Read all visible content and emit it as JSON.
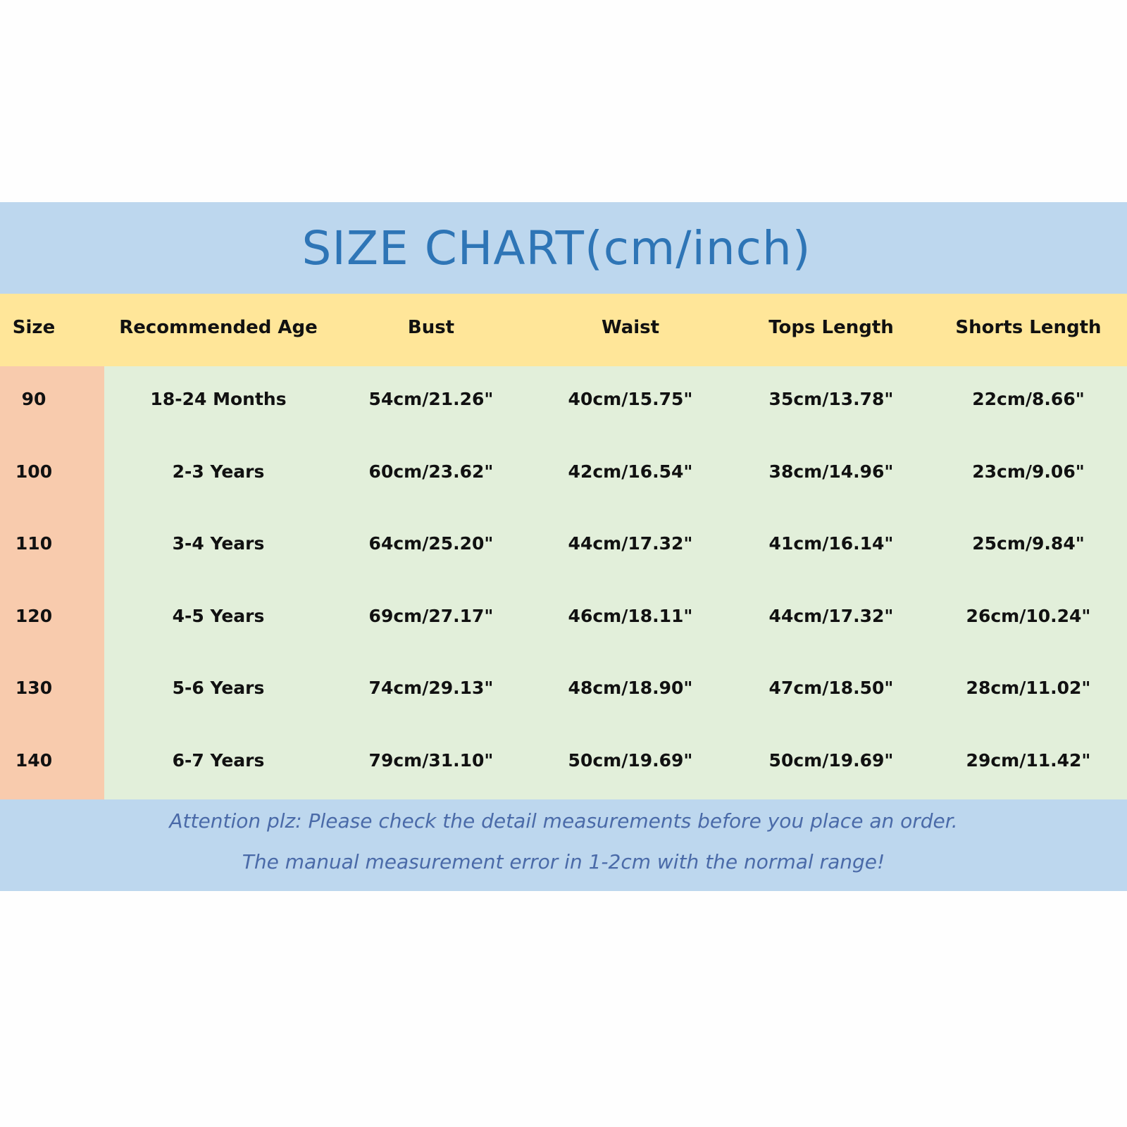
{
  "title": "SIZE CHART(cm/inch)",
  "colors": {
    "title_band": "#bdd7ee",
    "header_band": "#ffe699",
    "size_column": "#f8cbad",
    "body": "#e2efda",
    "title_text": "#2e75b6"
  },
  "columns": [
    "Size",
    "Recommended Age",
    "Bust",
    "Waist",
    "Tops Length",
    "Shorts Length"
  ],
  "rows": [
    [
      "90",
      "18-24 Months",
      "54cm/21.26\"",
      "40cm/15.75\"",
      "35cm/13.78\"",
      "22cm/8.66\""
    ],
    [
      "100",
      "2-3 Years",
      "60cm/23.62\"",
      "42cm/16.54\"",
      "38cm/14.96\"",
      "23cm/9.06\""
    ],
    [
      "110",
      "3-4 Years",
      "64cm/25.20\"",
      "44cm/17.32\"",
      "41cm/16.14\"",
      "25cm/9.84\""
    ],
    [
      "120",
      "4-5 Years",
      "69cm/27.17\"",
      "46cm/18.11\"",
      "44cm/17.32\"",
      "26cm/10.24\""
    ],
    [
      "130",
      "5-6 Years",
      "74cm/29.13\"",
      "48cm/18.90\"",
      "47cm/18.50\"",
      "28cm/11.02\""
    ],
    [
      "140",
      "6-7 Years",
      "79cm/31.10\"",
      "50cm/19.69\"",
      "50cm/19.69\"",
      "29cm/11.42\""
    ]
  ],
  "notes": [
    "Attention plz:  Please check the detail measurements before you place an order.",
    "The manual measurement error in 1-2cm with the normal range!"
  ]
}
